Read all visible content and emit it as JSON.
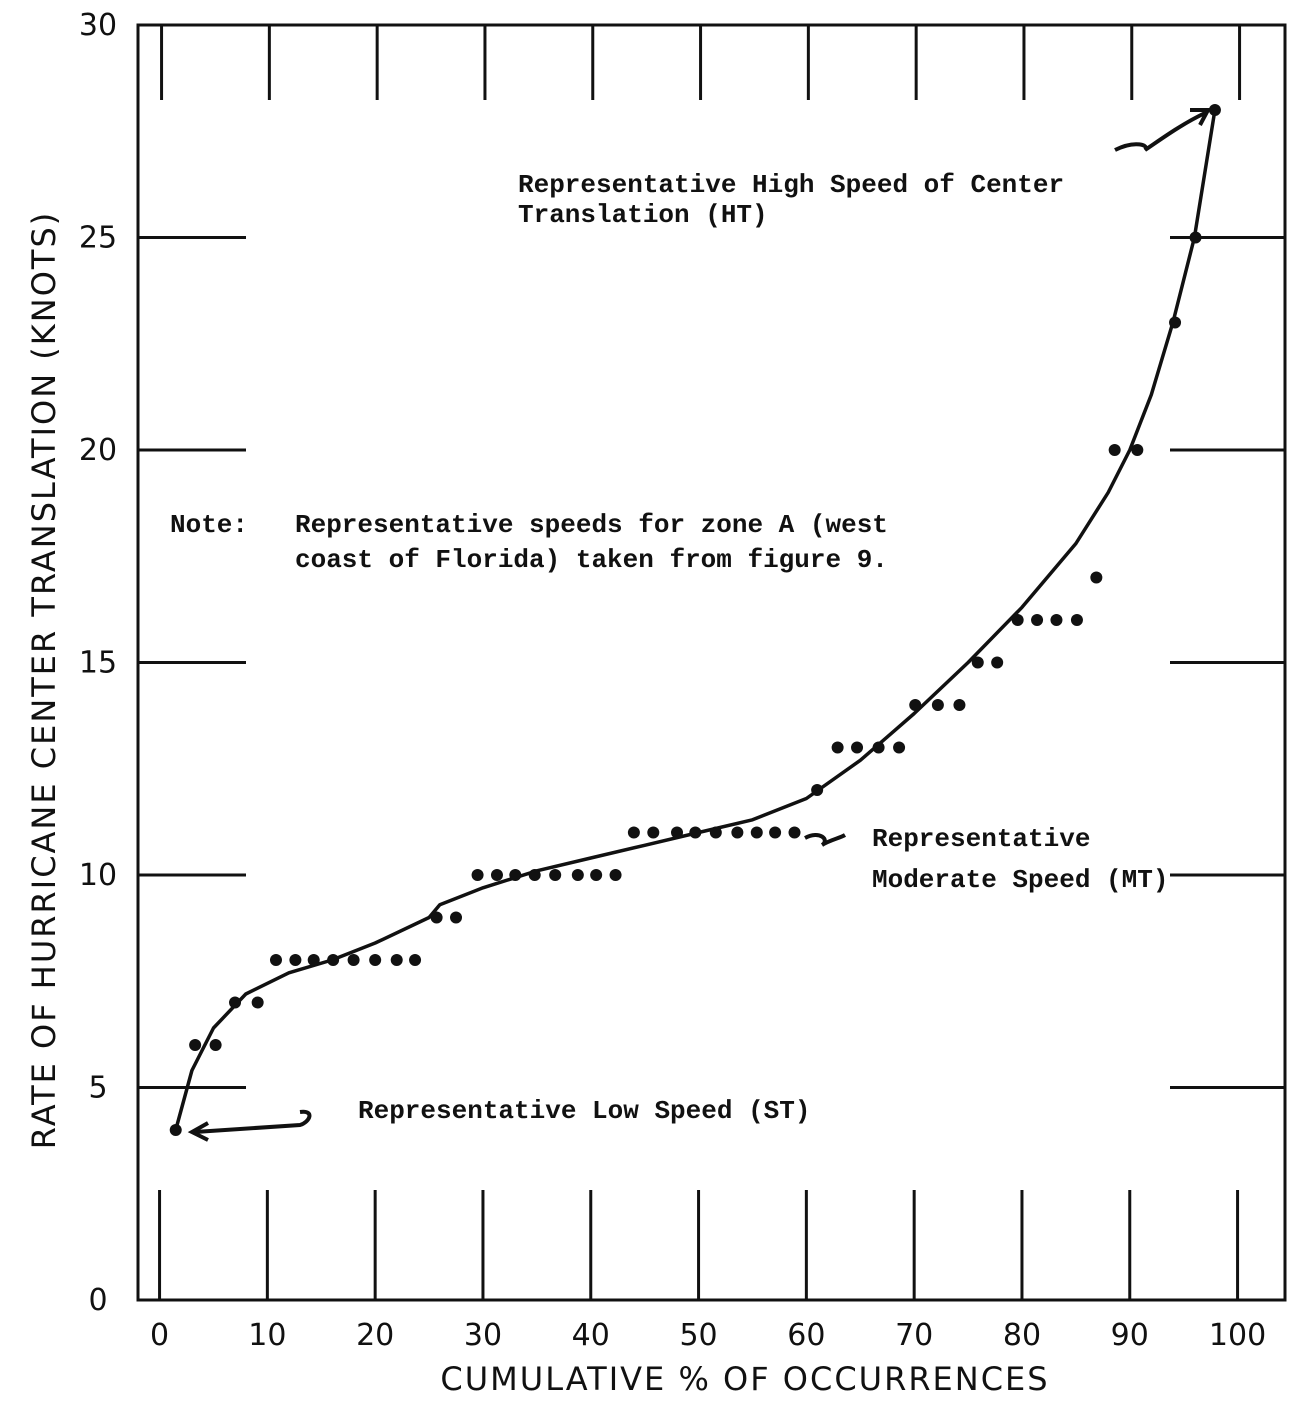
{
  "chart_data": {
    "type": "scatter",
    "xlabel": "CUMULATIVE % OF OCCURRENCES",
    "ylabel": "RATE OF HURRICANE CENTER TRANSLATION (KNOTS)",
    "x": [
      1.5,
      3.3,
      5.2,
      7.0,
      9.1,
      10.8,
      12.6,
      14.3,
      16.1,
      18.0,
      20.0,
      22.0,
      23.7,
      25.7,
      27.5,
      29.5,
      31.3,
      33.0,
      34.8,
      36.7,
      38.8,
      40.5,
      42.3,
      44.0,
      45.8,
      48.0,
      49.7,
      51.6,
      53.6,
      55.4,
      57.1,
      58.9,
      61.0,
      62.9,
      64.7,
      66.7,
      68.6,
      70.1,
      72.2,
      74.2,
      75.9,
      77.7,
      79.6,
      81.4,
      83.2,
      85.1,
      86.9,
      88.6,
      90.7,
      94.2,
      96.1,
      97.9
    ],
    "y": [
      4,
      6,
      6,
      7,
      7,
      8,
      8,
      8,
      8,
      8,
      8,
      8,
      8,
      9,
      9,
      10,
      10,
      10,
      10,
      10,
      10,
      10,
      10,
      11,
      11,
      11,
      11,
      11,
      11,
      11,
      11,
      11,
      12,
      13,
      13,
      13,
      13,
      14,
      14,
      14,
      15,
      15,
      16,
      16,
      16,
      16,
      17,
      20,
      20,
      23,
      25,
      28
    ],
    "color": "#111111",
    "curve": {
      "x": [
        1.5,
        3,
        5,
        8,
        12,
        16,
        20,
        25,
        26,
        30,
        35,
        40,
        45,
        50,
        55,
        60,
        65,
        70,
        75,
        80,
        85,
        88,
        90,
        92,
        94,
        96,
        97.9
      ],
      "y": [
        4,
        5.4,
        6.4,
        7.2,
        7.7,
        8.0,
        8.4,
        9.0,
        9.3,
        9.7,
        10.1,
        10.4,
        10.7,
        11.0,
        11.3,
        11.8,
        12.7,
        13.8,
        15.0,
        16.3,
        17.8,
        19.0,
        20.0,
        21.3,
        23.0,
        25.0,
        28.0
      ]
    },
    "xlim": [
      -2,
      104.4
    ],
    "ylim": [
      0,
      30
    ],
    "xticks": [
      0,
      10,
      20,
      30,
      40,
      50,
      60,
      70,
      80,
      90,
      100
    ],
    "yticks": [
      0,
      5,
      10,
      15,
      20,
      25,
      30
    ],
    "grid": false,
    "annotations": {
      "high": [
        "Representative High Speed of Center",
        "Translation (HT)"
      ],
      "note_label": "Note:",
      "note": [
        "Representative speeds for zone A (west",
        "coast of Florida) taken from figure 9."
      ],
      "moderate": [
        "Representative",
        "Moderate Speed (MT)"
      ],
      "low": "Representative Low Speed (ST)"
    }
  }
}
